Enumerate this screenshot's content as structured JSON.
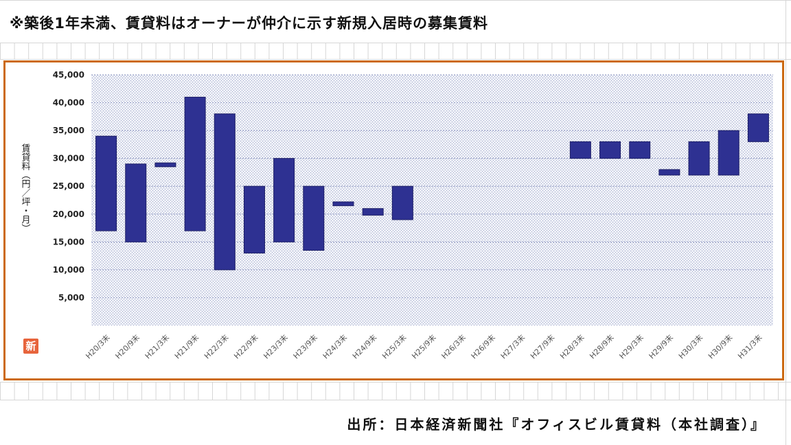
{
  "note": "※築後1年未満、賃貸料はオーナーが仲介に示す新規入居時の募集賃料",
  "source": "出所：日本経済新聞社『オフィスビル賃貸料（本社調査）』",
  "logo_text": "新",
  "colors": {
    "frame": "#cc6a12",
    "bar": "#2e3192",
    "plot_dots": "#9aa3c8",
    "logo": "#e7643c"
  },
  "chart_data": {
    "type": "bar",
    "subtype": "floating-range",
    "ylabel": "賃貸料（円／坪・月）",
    "ylim": [
      0,
      45000
    ],
    "ytick_labels": [
      "45,000",
      "40,000",
      "35,000",
      "30,000",
      "25,000",
      "20,000",
      "15,000",
      "10,000",
      "5,000"
    ],
    "ytick_values": [
      45000,
      40000,
      35000,
      30000,
      25000,
      20000,
      15000,
      10000,
      5000
    ],
    "categories": [
      "H20/3末",
      "H20/9末",
      "H21/3末",
      "H21/9末",
      "H22/3末",
      "H22/9末",
      "H23/3末",
      "H23/9末",
      "H24/3末",
      "H24/9末",
      "H25/3末",
      "H25/9末",
      "H26/3末",
      "H26/9末",
      "H27/3末",
      "H27/9末",
      "H28/3末",
      "H28/9末",
      "H29/3末",
      "H29/9末",
      "H30/3末",
      "H30/9末",
      "H31/3末"
    ],
    "low": [
      17000,
      15000,
      28500,
      17000,
      10000,
      13000,
      15000,
      13500,
      21500,
      19800,
      19000,
      null,
      null,
      null,
      null,
      null,
      30000,
      30000,
      30000,
      27000,
      27000,
      27000,
      33000
    ],
    "high": [
      34000,
      29000,
      29200,
      41000,
      38000,
      25000,
      30000,
      25000,
      22200,
      21000,
      25000,
      null,
      null,
      null,
      null,
      null,
      33000,
      33000,
      33000,
      28000,
      33000,
      35000,
      38000
    ],
    "grid": true,
    "legend": "none"
  }
}
